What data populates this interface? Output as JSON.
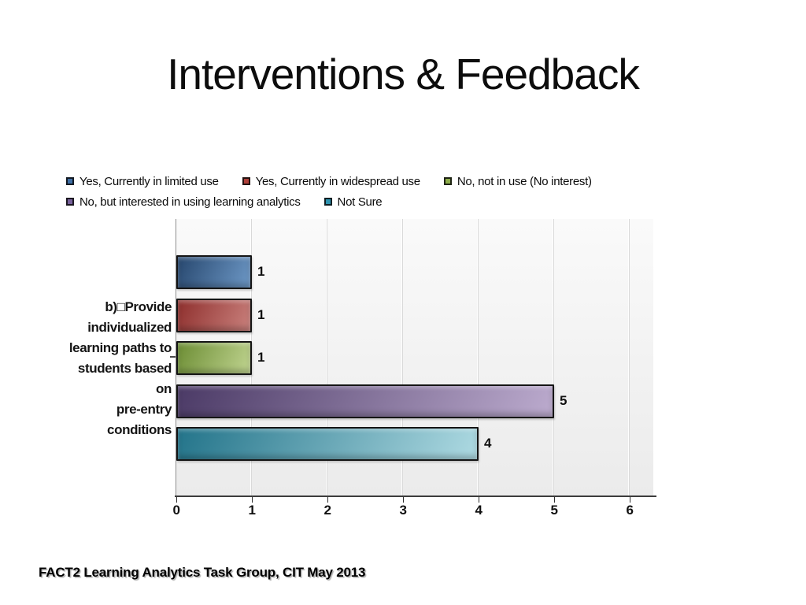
{
  "slide": {
    "title": "Interventions & Feedback",
    "footer": "FACT2 Learning Analytics Task Group, CIT May 2013"
  },
  "chart_data": {
    "type": "bar",
    "orientation": "horizontal",
    "title": "Interventions & Feedback",
    "category_label": "b)□Provide individualized learning paths to students based on pre-entry conditions",
    "category_label_wrapped": "b)□Provide\nindividualized\nlearning paths to\nstudents based on\npre-entry\nconditions",
    "series": [
      {
        "name": "Yes, Currently in limited use",
        "value": 1,
        "swatch": "#3f6fa5",
        "bar_dark": "#27476e",
        "bar_light": "#6d98c6"
      },
      {
        "name": "Yes, Currently in widespread use",
        "value": 1,
        "swatch": "#af403a",
        "bar_dark": "#8e2f2d",
        "bar_light": "#ca817d"
      },
      {
        "name": "No, not in use (No interest)",
        "value": 1,
        "swatch": "#8dac4a",
        "bar_dark": "#6c8d34",
        "bar_light": "#c0d490"
      },
      {
        "name": "No, but interested in using learning analytics",
        "value": 5,
        "swatch": "#77619b",
        "bar_dark": "#4b3a66",
        "bar_light": "#bcabce"
      },
      {
        "name": "Not Sure",
        "value": 4,
        "swatch": "#2e93b0",
        "bar_dark": "#23748a",
        "bar_light": "#aedae2"
      }
    ],
    "x_ticks": [
      0,
      1,
      2,
      3,
      4,
      5,
      6
    ],
    "xlim": [
      0,
      6.3
    ],
    "grid": true,
    "legend_position": "top",
    "value_labels": true
  }
}
